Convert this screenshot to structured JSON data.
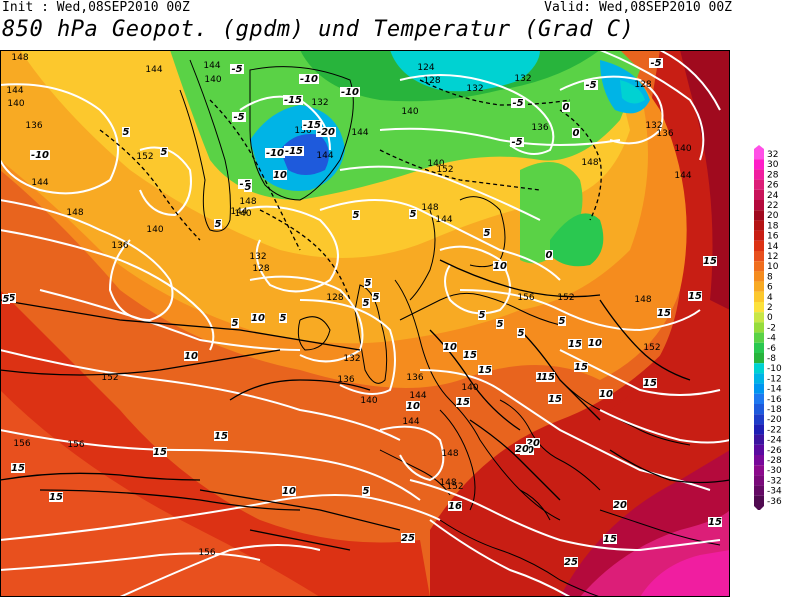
{
  "header": {
    "init": "Init : Wed,08SEP2010 00Z",
    "valid": "Valid: Wed,08SEP2010 00Z",
    "title": "850 hPa Geopot. (gpdm) und Temperatur (Grad C)"
  },
  "colors": {
    "deep_red": "#b0101e",
    "red": "#d02020",
    "orange_red": "#e85a14",
    "orange": "#f08c1e",
    "light_orange": "#f8b428",
    "yellow": "#fcd83a",
    "green": "#2ad44a",
    "light_green": "#8ce64a",
    "cyan": "#00e6e6",
    "blue": "#1e5ce6",
    "magenta": "#ff1eb4"
  },
  "legend": {
    "values": [
      "32",
      "30",
      "28",
      "26",
      "24",
      "22",
      "20",
      "18",
      "16",
      "14",
      "12",
      "10",
      "8",
      "6",
      "4",
      "2",
      "0",
      "-2",
      "-4",
      "-6",
      "-8",
      "-10",
      "-12",
      "-14",
      "-16",
      "-18",
      "-20",
      "-22",
      "-24",
      "-26",
      "-28",
      "-30",
      "-32",
      "-34",
      "-36"
    ],
    "colors": [
      "#ff50e6",
      "#ff1ec8",
      "#f01ea0",
      "#dc1e78",
      "#c8145a",
      "#b40a3c",
      "#a00a1e",
      "#b41414",
      "#c81e14",
      "#dc3214",
      "#e8501e",
      "#f06e1e",
      "#f58c1e",
      "#f8aa23",
      "#fcc82d",
      "#fce13c",
      "#c8e646",
      "#96dc3c",
      "#5ad246",
      "#2ac850",
      "#28b43c",
      "#00d2d2",
      "#00b4e6",
      "#0096f0",
      "#1e78f0",
      "#1e5adc",
      "#1e3cc8",
      "#1e1eb4",
      "#3c14a0",
      "#5a0aa0",
      "#78089a",
      "#8c0a8c",
      "#7a0a7a",
      "#640a64",
      "#500a50"
    ]
  },
  "geopotential_labels": [
    {
      "text": "148"
    },
    {
      "text": "144"
    },
    {
      "text": "140"
    },
    {
      "text": "136"
    },
    {
      "text": "144"
    },
    {
      "text": "148"
    },
    {
      "text": "136"
    },
    {
      "text": "140"
    },
    {
      "text": "144"
    },
    {
      "text": "152"
    },
    {
      "text": "140"
    },
    {
      "text": "144"
    },
    {
      "text": "124"
    },
    {
      "text": "128"
    },
    {
      "text": "132"
    },
    {
      "text": "132"
    },
    {
      "text": "136"
    },
    {
      "text": "128"
    },
    {
      "text": "132"
    },
    {
      "text": "136"
    },
    {
      "text": "140"
    },
    {
      "text": "144"
    },
    {
      "text": "148"
    },
    {
      "text": "152"
    },
    {
      "text": "140"
    },
    {
      "text": "136"
    },
    {
      "text": "132"
    },
    {
      "text": "128"
    },
    {
      "text": "128"
    },
    {
      "text": "132"
    },
    {
      "text": "136"
    },
    {
      "text": "140"
    },
    {
      "text": "144"
    },
    {
      "text": "148"
    },
    {
      "text": "152"
    },
    {
      "text": "156"
    },
    {
      "text": "152"
    },
    {
      "text": "148"
    },
    {
      "text": "152"
    },
    {
      "text": "136"
    },
    {
      "text": "140"
    },
    {
      "text": "152"
    },
    {
      "text": "156"
    },
    {
      "text": "156"
    },
    {
      "text": "156"
    },
    {
      "text": "148"
    },
    {
      "text": "144"
    },
    {
      "text": "140"
    },
    {
      "text": "148"
    },
    {
      "text": "144"
    },
    {
      "text": "144"
    },
    {
      "text": "144"
    },
    {
      "text": "148"
    },
    {
      "text": "144"
    },
    {
      "text": "140"
    },
    {
      "text": "132"
    }
  ],
  "temperature_labels": [
    {
      "text": "-5"
    },
    {
      "text": "-10"
    },
    {
      "text": "-5"
    },
    {
      "text": "-15"
    },
    {
      "text": "-10"
    },
    {
      "text": "-15"
    },
    {
      "text": "-20"
    },
    {
      "text": "-10"
    },
    {
      "text": "-15"
    },
    {
      "text": "-5"
    },
    {
      "text": "0"
    },
    {
      "text": "-5"
    },
    {
      "text": "-5"
    },
    {
      "text": "-5"
    },
    {
      "text": "0"
    },
    {
      "text": "-5"
    },
    {
      "text": "-10"
    },
    {
      "text": "5"
    },
    {
      "text": "5"
    },
    {
      "text": "10"
    },
    {
      "text": "5"
    },
    {
      "text": "5"
    },
    {
      "text": "5"
    },
    {
      "text": "5"
    },
    {
      "text": "5"
    },
    {
      "text": "5"
    },
    {
      "text": "5"
    },
    {
      "text": "10"
    },
    {
      "text": "5"
    },
    {
      "text": "5"
    },
    {
      "text": "5"
    },
    {
      "text": "0"
    },
    {
      "text": "5"
    },
    {
      "text": "5"
    },
    {
      "text": "5"
    },
    {
      "text": "5"
    },
    {
      "text": "5"
    },
    {
      "text": "10"
    },
    {
      "text": "10"
    },
    {
      "text": "15"
    },
    {
      "text": "15"
    },
    {
      "text": "10"
    },
    {
      "text": "15"
    },
    {
      "text": "15"
    },
    {
      "text": "15"
    },
    {
      "text": "10"
    },
    {
      "text": "15"
    },
    {
      "text": "15"
    },
    {
      "text": "15"
    },
    {
      "text": "10"
    },
    {
      "text": "15"
    },
    {
      "text": "15"
    },
    {
      "text": "15"
    },
    {
      "text": "20"
    },
    {
      "text": "15"
    },
    {
      "text": "16"
    },
    {
      "text": "20"
    },
    {
      "text": "20"
    },
    {
      "text": "25"
    },
    {
      "text": "25"
    },
    {
      "text": "5"
    },
    {
      "text": "10"
    },
    {
      "text": "15"
    },
    {
      "text": "15"
    },
    {
      "text": "15"
    },
    {
      "text": "15"
    },
    {
      "text": "10"
    },
    {
      "text": "5"
    },
    {
      "text": "20"
    },
    {
      "text": "15"
    },
    {
      "text": "15"
    }
  ]
}
